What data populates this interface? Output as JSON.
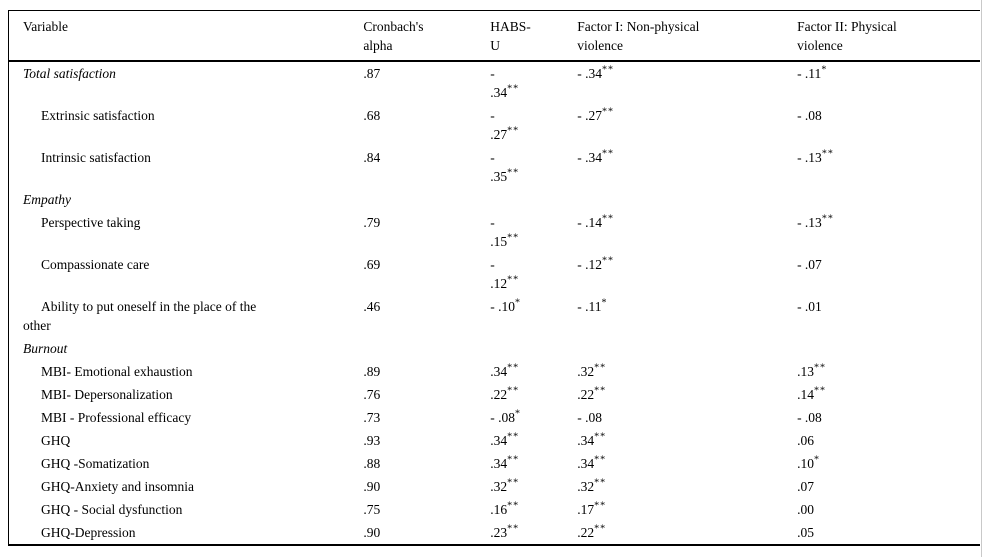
{
  "page": {
    "background": "#ffffff",
    "rule_color": "#000000",
    "edge_line_color": "#c9c9c9"
  },
  "table": {
    "columns": [
      {
        "key": "variable",
        "label": "Variable"
      },
      {
        "key": "alpha",
        "label": "Cronbach's\nalpha"
      },
      {
        "key": "habs",
        "label": "HABS-\nU"
      },
      {
        "key": "f1",
        "label": "Factor I: Non-physical\nviolence"
      },
      {
        "key": "f2",
        "label": "Factor II: Physical\nviolence"
      }
    ],
    "rows": [
      {
        "label": "Total satisfaction",
        "section": true,
        "alpha": ".87",
        "habs": {
          "text": "-\n.34",
          "sup": "**"
        },
        "f1": {
          "text": "- .34",
          "sup": "**"
        },
        "f2": {
          "text": "- .11",
          "sup": "*"
        }
      },
      {
        "label": "Extrinsic satisfaction",
        "alpha": ".68",
        "habs": {
          "text": "-\n.27",
          "sup": "**"
        },
        "f1": {
          "text": "- .27",
          "sup": "**"
        },
        "f2": {
          "text": "- .08"
        }
      },
      {
        "label": "Intrinsic satisfaction",
        "alpha": ".84",
        "habs": {
          "text": "-\n.35",
          "sup": "**"
        },
        "f1": {
          "text": "- .34",
          "sup": "**"
        },
        "f2": {
          "text": "- .13",
          "sup": "**"
        }
      },
      {
        "label": "Empathy",
        "section": true
      },
      {
        "label": "Perspective taking",
        "alpha": ".79",
        "habs": {
          "text": "-\n.15",
          "sup": "**"
        },
        "f1": {
          "text": "- .14",
          "sup": "**"
        },
        "f2": {
          "text": "- .13",
          "sup": "**"
        }
      },
      {
        "label": "Compassionate care",
        "alpha": ".69",
        "habs": {
          "text": "-\n.12",
          "sup": "**"
        },
        "f1": {
          "text": "- .12",
          "sup": "**"
        },
        "f2": {
          "text": "- .07"
        }
      },
      {
        "label": "Ability to put oneself in the place of the\nother",
        "alpha": ".46",
        "habs": {
          "text": "- .10",
          "sup": "*"
        },
        "f1": {
          "text": "- .11",
          "sup": "*"
        },
        "f2": {
          "text": "- .01"
        }
      },
      {
        "label": "Burnout",
        "section": true
      },
      {
        "label": "MBI- Emotional exhaustion",
        "alpha": ".89",
        "habs": {
          "text": ".34",
          "sup": "**"
        },
        "f1": {
          "text": ".32",
          "sup": "**"
        },
        "f2": {
          "text": ".13",
          "sup": "**"
        }
      },
      {
        "label": "MBI- Depersonalization",
        "alpha": ".76",
        "habs": {
          "text": ".22",
          "sup": "**"
        },
        "f1": {
          "text": ".22",
          "sup": "**"
        },
        "f2": {
          "text": ".14",
          "sup": "**"
        }
      },
      {
        "label": "MBI - Professional efficacy",
        "alpha": ".73",
        "habs": {
          "text": "- .08",
          "sup": "*"
        },
        "f1": {
          "text": "- .08"
        },
        "f2": {
          "text": "- .08"
        }
      },
      {
        "label": "GHQ",
        "alpha": ".93",
        "habs": {
          "text": ".34",
          "sup": "**"
        },
        "f1": {
          "text": ".34",
          "sup": "**"
        },
        "f2": {
          "text": ".06"
        }
      },
      {
        "label": "GHQ -Somatization",
        "alpha": ".88",
        "habs": {
          "text": ".34",
          "sup": "**"
        },
        "f1": {
          "text": ".34",
          "sup": "**"
        },
        "f2": {
          "text": ".10",
          "sup": "*"
        }
      },
      {
        "label": "GHQ-Anxiety and insomnia",
        "alpha": ".90",
        "habs": {
          "text": ".32",
          "sup": "**"
        },
        "f1": {
          "text": ".32",
          "sup": "**"
        },
        "f2": {
          "text": ".07"
        }
      },
      {
        "label": "GHQ - Social dysfunction",
        "alpha": ".75",
        "habs": {
          "text": ".16",
          "sup": "**"
        },
        "f1": {
          "text": ".17",
          "sup": "**"
        },
        "f2": {
          "text": ".00"
        }
      },
      {
        "label": "GHQ-Depression",
        "alpha": ".90",
        "habs": {
          "text": ".23",
          "sup": "**"
        },
        "f1": {
          "text": ".22",
          "sup": "**"
        },
        "f2": {
          "text": ".05"
        }
      }
    ]
  }
}
